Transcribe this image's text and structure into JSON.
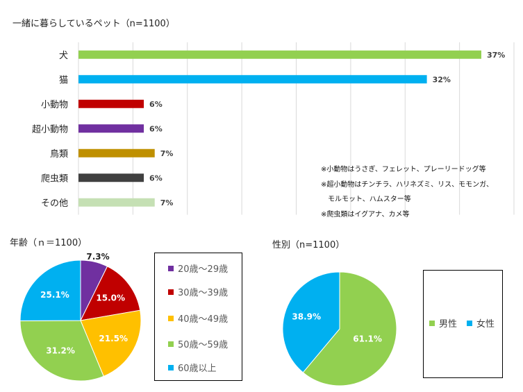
{
  "bar_chart_title": "一緒に暮らしているペット（n=1100）",
  "age_chart_title": "年齢（ｎ＝1100）",
  "gender_chart_title": "性別（n=1100）",
  "notes": [
    "※小動物はうさぎ、フェレット、プレーリードッグ等",
    "※超小動物はチンチラ、ハリネズミ、リス、モモンガ、",
    "　モルモット、ハムスター等",
    "※爬虫類はイグアナ、カメ等"
  ],
  "colors": {
    "green": "#92D050",
    "blue": "#00B0F0",
    "red": "#C00000",
    "purple": "#7030A0",
    "gold": "#BF9000",
    "dark": "#404040",
    "light_green": "#C5E0B4",
    "orange": "#FFC000"
  },
  "chart_data": [
    {
      "type": "bar",
      "orientation": "horizontal",
      "title": "一緒に暮らしているペット（n=1100）",
      "categories": [
        "犬",
        "猫",
        "小動物",
        "超小動物",
        "鳥類",
        "爬虫類",
        "その他"
      ],
      "values": [
        37,
        32,
        6,
        6,
        7,
        6,
        7
      ],
      "value_labels": [
        "37%",
        "32%",
        "6%",
        "6%",
        "7%",
        "6%",
        "7%"
      ],
      "bar_colors": [
        "#92D050",
        "#00B0F0",
        "#C00000",
        "#7030A0",
        "#BF9000",
        "#404040",
        "#C5E0B4"
      ],
      "xlim": [
        0,
        40
      ],
      "grid": true
    },
    {
      "type": "pie",
      "title": "年齢（ｎ＝1100）",
      "labels": [
        "20歳～29歳",
        "30歳～39歳",
        "40歳～49歳",
        "50歳～59歳",
        "60歳以上"
      ],
      "values": [
        7.3,
        15.0,
        21.5,
        31.2,
        25.1
      ],
      "value_labels": [
        "7.3%",
        "15.0%",
        "21.5%",
        "31.2%",
        "25.1%"
      ],
      "colors": [
        "#7030A0",
        "#C00000",
        "#FFC000",
        "#92D050",
        "#00B0F0"
      ],
      "legend_position": "right"
    },
    {
      "type": "pie",
      "title": "性別（n=1100）",
      "labels": [
        "男性",
        "女性"
      ],
      "values": [
        61.1,
        38.9
      ],
      "value_labels": [
        "61.1%",
        "38.9%"
      ],
      "colors": [
        "#92D050",
        "#00B0F0"
      ],
      "legend_position": "right"
    }
  ]
}
